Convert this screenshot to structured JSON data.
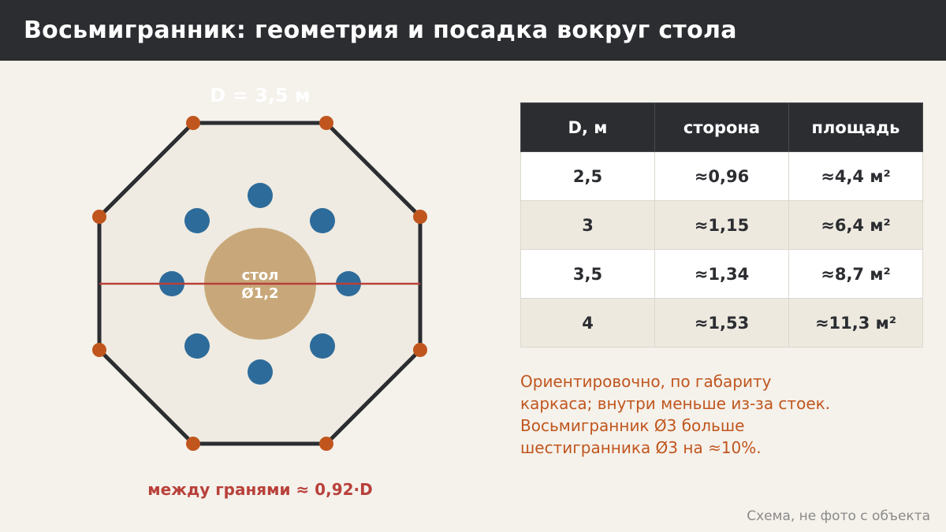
{
  "header": {
    "title": "Восьмигранник: геометрия и посадка вокруг стола"
  },
  "diagram": {
    "diameter_label": "D = 3,5 м",
    "table_label_line1": "стол",
    "table_label_line2": "Ø1,2",
    "between_faces_label": "между гранями ≈ 0,92·D",
    "seat_count": 8,
    "colors": {
      "frame": "#2b2d31",
      "fill": "#efebe2",
      "vertex": "#c0561e",
      "seat": "#2d6b9a",
      "table": "#c8a87a",
      "diameter_line": "#b8413a"
    }
  },
  "table": {
    "headers": [
      "D, м",
      "сторона",
      "площадь"
    ],
    "rows": [
      [
        "2,5",
        "≈0,96",
        "≈4,4 м²"
      ],
      [
        "3",
        "≈1,15",
        "≈6,4 м²"
      ],
      [
        "3,5",
        "≈1,34",
        "≈8,7 м²"
      ],
      [
        "4",
        "≈1,53",
        "≈11,3 м²"
      ]
    ]
  },
  "note": {
    "lines": [
      "Ориентировочно, по габариту",
      "каркаса; внутри меньше из-за стоек.",
      "Восьмигранник Ø3 больше",
      "шестигранника Ø3 на ≈10%."
    ]
  },
  "footer": {
    "text": "Схема, не фото с объекта"
  }
}
